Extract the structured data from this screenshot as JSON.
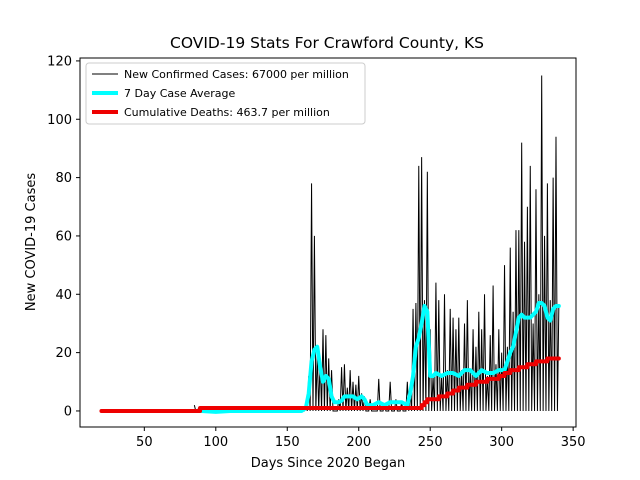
{
  "chart_data": {
    "type": "line",
    "title": "COVID-19 Stats For Crawford County, KS",
    "xlabel": "Days Since 2020 Began",
    "ylabel": "New COVID-19 Cases",
    "xlim": [
      5,
      352
    ],
    "ylim": [
      -5.5,
      121
    ],
    "xticks": [
      50,
      100,
      150,
      200,
      250,
      300,
      350
    ],
    "yticks": [
      0,
      20,
      40,
      60,
      80,
      100,
      120
    ],
    "grid": false,
    "legend_position": "top-left",
    "series": [
      {
        "name": "New Confirmed Cases: 67000 per million",
        "color": "#000000",
        "line_width": 1,
        "style": "spikes",
        "x_start": 85,
        "x_end": 340,
        "baseline": 0,
        "peaks": [
          [
            85,
            2
          ],
          [
            88,
            1
          ],
          [
            163,
            3
          ],
          [
            165,
            12
          ],
          [
            167,
            78
          ],
          [
            169,
            60
          ],
          [
            171,
            20
          ],
          [
            173,
            18
          ],
          [
            175,
            28
          ],
          [
            177,
            26
          ],
          [
            179,
            18
          ],
          [
            181,
            14
          ],
          [
            186,
            4
          ],
          [
            188,
            15
          ],
          [
            190,
            16
          ],
          [
            192,
            8
          ],
          [
            194,
            14
          ],
          [
            196,
            10
          ],
          [
            198,
            9
          ],
          [
            200,
            12
          ],
          [
            202,
            6
          ],
          [
            204,
            5
          ],
          [
            208,
            4
          ],
          [
            214,
            11
          ],
          [
            218,
            2
          ],
          [
            222,
            10
          ],
          [
            226,
            4
          ],
          [
            230,
            3
          ],
          [
            234,
            10
          ],
          [
            236,
            6
          ],
          [
            238,
            35
          ],
          [
            240,
            37
          ],
          [
            242,
            84
          ],
          [
            244,
            87
          ],
          [
            246,
            38
          ],
          [
            248,
            82
          ],
          [
            250,
            28
          ],
          [
            252,
            12
          ],
          [
            254,
            44
          ],
          [
            256,
            38
          ],
          [
            258,
            12
          ],
          [
            260,
            40
          ],
          [
            262,
            14
          ],
          [
            264,
            35
          ],
          [
            266,
            32
          ],
          [
            268,
            28
          ],
          [
            270,
            32
          ],
          [
            272,
            14
          ],
          [
            274,
            30
          ],
          [
            276,
            38
          ],
          [
            278,
            14
          ],
          [
            280,
            28
          ],
          [
            282,
            22
          ],
          [
            284,
            34
          ],
          [
            286,
            28
          ],
          [
            288,
            40
          ],
          [
            290,
            12
          ],
          [
            292,
            26
          ],
          [
            294,
            43
          ],
          [
            296,
            16
          ],
          [
            298,
            28
          ],
          [
            300,
            20
          ],
          [
            302,
            50
          ],
          [
            304,
            22
          ],
          [
            306,
            56
          ],
          [
            308,
            34
          ],
          [
            310,
            62
          ],
          [
            312,
            62
          ],
          [
            314,
            92
          ],
          [
            316,
            58
          ],
          [
            318,
            70
          ],
          [
            320,
            84
          ],
          [
            322,
            30
          ],
          [
            324,
            76
          ],
          [
            326,
            40
          ],
          [
            328,
            115
          ],
          [
            330,
            60
          ],
          [
            332,
            78
          ],
          [
            334,
            38
          ],
          [
            336,
            80
          ],
          [
            338,
            94
          ],
          [
            340,
            36
          ]
        ]
      },
      {
        "name": "7 Day Case Average",
        "color": "#00ffff",
        "line_width": 4,
        "style": "line",
        "points": [
          [
            90,
            0
          ],
          [
            100,
            -0.3
          ],
          [
            110,
            0
          ],
          [
            120,
            0
          ],
          [
            130,
            0
          ],
          [
            140,
            0
          ],
          [
            150,
            0
          ],
          [
            160,
            0
          ],
          [
            163,
            1
          ],
          [
            165,
            6
          ],
          [
            167,
            17
          ],
          [
            169,
            21
          ],
          [
            171,
            22
          ],
          [
            173,
            15
          ],
          [
            175,
            10
          ],
          [
            177,
            12
          ],
          [
            179,
            11
          ],
          [
            181,
            5
          ],
          [
            183,
            3
          ],
          [
            186,
            3
          ],
          [
            188,
            3.5
          ],
          [
            190,
            5
          ],
          [
            193,
            5
          ],
          [
            196,
            5
          ],
          [
            199,
            4
          ],
          [
            202,
            5
          ],
          [
            204,
            4
          ],
          [
            206,
            2
          ],
          [
            210,
            2
          ],
          [
            214,
            3
          ],
          [
            218,
            2
          ],
          [
            222,
            3
          ],
          [
            226,
            3
          ],
          [
            230,
            3
          ],
          [
            234,
            2
          ],
          [
            236,
            6
          ],
          [
            238,
            12
          ],
          [
            240,
            22
          ],
          [
            242,
            25
          ],
          [
            244,
            30
          ],
          [
            246,
            36
          ],
          [
            248,
            34
          ],
          [
            250,
            12
          ],
          [
            252,
            12
          ],
          [
            254,
            13
          ],
          [
            258,
            12
          ],
          [
            262,
            13
          ],
          [
            266,
            13
          ],
          [
            270,
            12
          ],
          [
            274,
            14
          ],
          [
            278,
            14
          ],
          [
            282,
            12
          ],
          [
            286,
            14
          ],
          [
            290,
            13
          ],
          [
            294,
            13
          ],
          [
            298,
            14
          ],
          [
            302,
            14
          ],
          [
            304,
            17
          ],
          [
            306,
            20
          ],
          [
            308,
            22
          ],
          [
            310,
            27
          ],
          [
            312,
            32
          ],
          [
            314,
            33
          ],
          [
            316,
            32
          ],
          [
            318,
            32
          ],
          [
            320,
            32
          ],
          [
            322,
            33
          ],
          [
            324,
            34
          ],
          [
            326,
            37
          ],
          [
            328,
            37
          ],
          [
            330,
            36
          ],
          [
            332,
            32
          ],
          [
            334,
            31
          ],
          [
            336,
            35
          ],
          [
            338,
            36
          ],
          [
            340,
            36
          ]
        ]
      },
      {
        "name": "Cumulative Deaths: 463.7 per million",
        "color": "#ee0000",
        "line_width": 4,
        "style": "step",
        "points": [
          [
            20,
            0
          ],
          [
            88,
            0
          ],
          [
            89,
            1
          ],
          [
            240,
            1
          ],
          [
            244,
            2
          ],
          [
            246,
            3
          ],
          [
            248,
            4
          ],
          [
            256,
            5
          ],
          [
            262,
            6
          ],
          [
            266,
            7
          ],
          [
            270,
            8
          ],
          [
            276,
            9
          ],
          [
            282,
            10
          ],
          [
            290,
            11
          ],
          [
            298,
            12
          ],
          [
            302,
            13
          ],
          [
            306,
            14
          ],
          [
            312,
            15
          ],
          [
            318,
            16
          ],
          [
            324,
            17
          ],
          [
            332,
            18
          ],
          [
            340,
            18
          ]
        ]
      }
    ]
  }
}
